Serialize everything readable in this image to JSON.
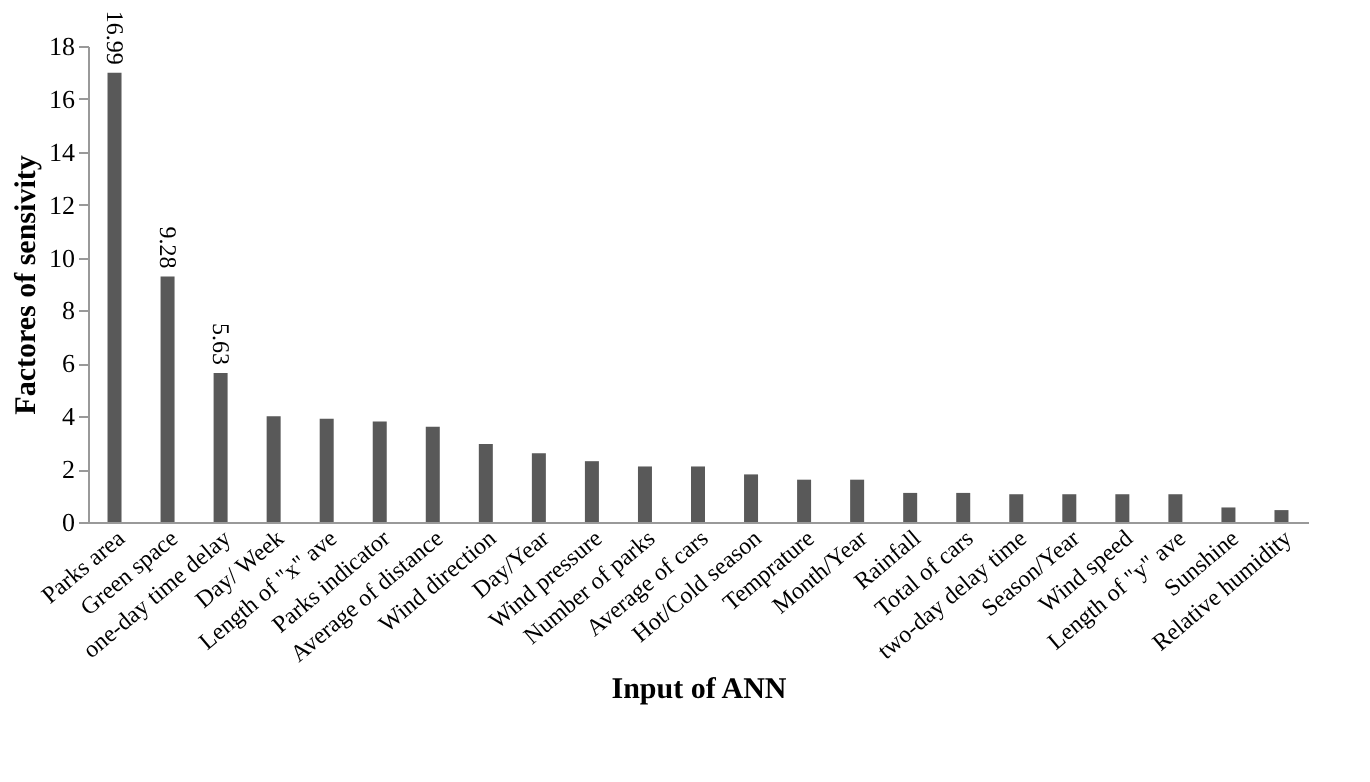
{
  "chart_data": {
    "type": "bar",
    "xlabel": "Input of ANN",
    "ylabel": "Factores of sensivity",
    "categories": [
      "Parks area",
      "Green space",
      "one-day time delay",
      "Day/ Week",
      "Length of \"x\" ave",
      "Parks indicator",
      "Average of distance",
      "Wind direction",
      "Day/Year",
      "Wind pressure",
      "Number of parks",
      "Average of cars",
      "Hot/Cold  season",
      "Temprature",
      "Month/Year",
      "Rainfall",
      "Total of cars",
      "two-day delay time",
      "Season/Year",
      "Wind speed",
      "Length of \"y\" ave",
      "Sunshine",
      "Relative humidity"
    ],
    "values": [
      16.99,
      9.28,
      5.63,
      4.0,
      3.9,
      3.8,
      3.6,
      2.95,
      2.6,
      2.3,
      2.1,
      2.1,
      1.8,
      1.6,
      1.6,
      1.1,
      1.1,
      1.05,
      1.05,
      1.05,
      1.05,
      0.55,
      0.45
    ],
    "value_labels": [
      "16.99",
      "9.28",
      "5.63",
      null,
      null,
      null,
      null,
      null,
      null,
      null,
      null,
      null,
      null,
      null,
      null,
      null,
      null,
      null,
      null,
      null,
      null,
      null,
      null
    ],
    "color": "#595959",
    "ylim": [
      0,
      18
    ],
    "yticks": [
      0,
      2,
      4,
      6,
      8,
      10,
      12,
      14,
      16,
      18
    ],
    "grid": false
  }
}
